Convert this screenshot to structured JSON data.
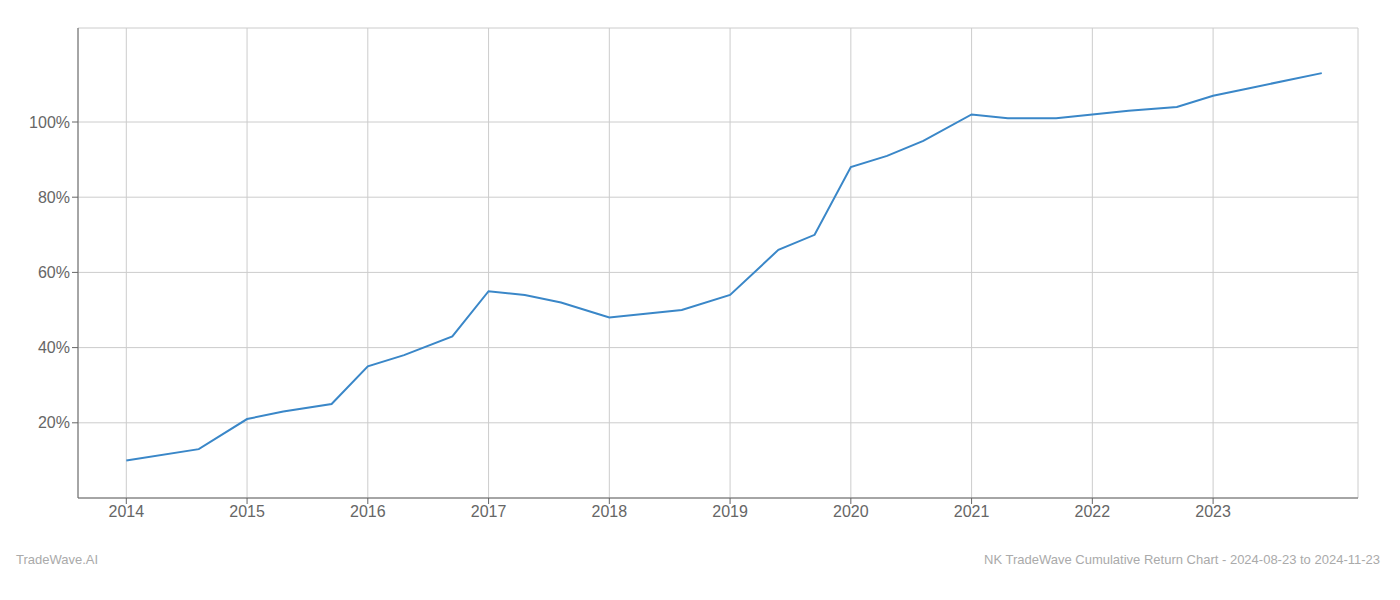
{
  "chart_data": {
    "type": "line",
    "x": [
      2014.0,
      2014.6,
      2015.0,
      2015.3,
      2015.7,
      2016.0,
      2016.3,
      2016.7,
      2017.0,
      2017.3,
      2017.6,
      2017.9,
      2018.0,
      2018.3,
      2018.6,
      2019.0,
      2019.4,
      2019.7,
      2020.0,
      2020.3,
      2020.6,
      2021.0,
      2021.3,
      2021.7,
      2022.0,
      2022.3,
      2022.7,
      2023.0,
      2023.3,
      2023.9
    ],
    "values": [
      10,
      13,
      21,
      23,
      25,
      35,
      38,
      43,
      55,
      54,
      52,
      49,
      48,
      49,
      50,
      54,
      66,
      70,
      88,
      91,
      95,
      102,
      101,
      101,
      102,
      103,
      104,
      107,
      109,
      113
    ],
    "color": "#3a87c8",
    "xlim": [
      2013.6,
      2024.2
    ],
    "xticks": [
      2014,
      2015,
      2016,
      2017,
      2018,
      2019,
      2020,
      2021,
      2022,
      2023
    ],
    "ylim": [
      0,
      125
    ],
    "yticks": [
      {
        "value": 20,
        "label": "20%"
      },
      {
        "value": 40,
        "label": "40%"
      },
      {
        "value": 60,
        "label": "60%"
      },
      {
        "value": 80,
        "label": "80%"
      },
      {
        "value": 100,
        "label": "100%"
      }
    ],
    "grid": true,
    "annotations": [
      "TradeWave.AI",
      "NK TradeWave Cumulative Return Chart - 2024-08-23 to 2024-11-23"
    ]
  }
}
